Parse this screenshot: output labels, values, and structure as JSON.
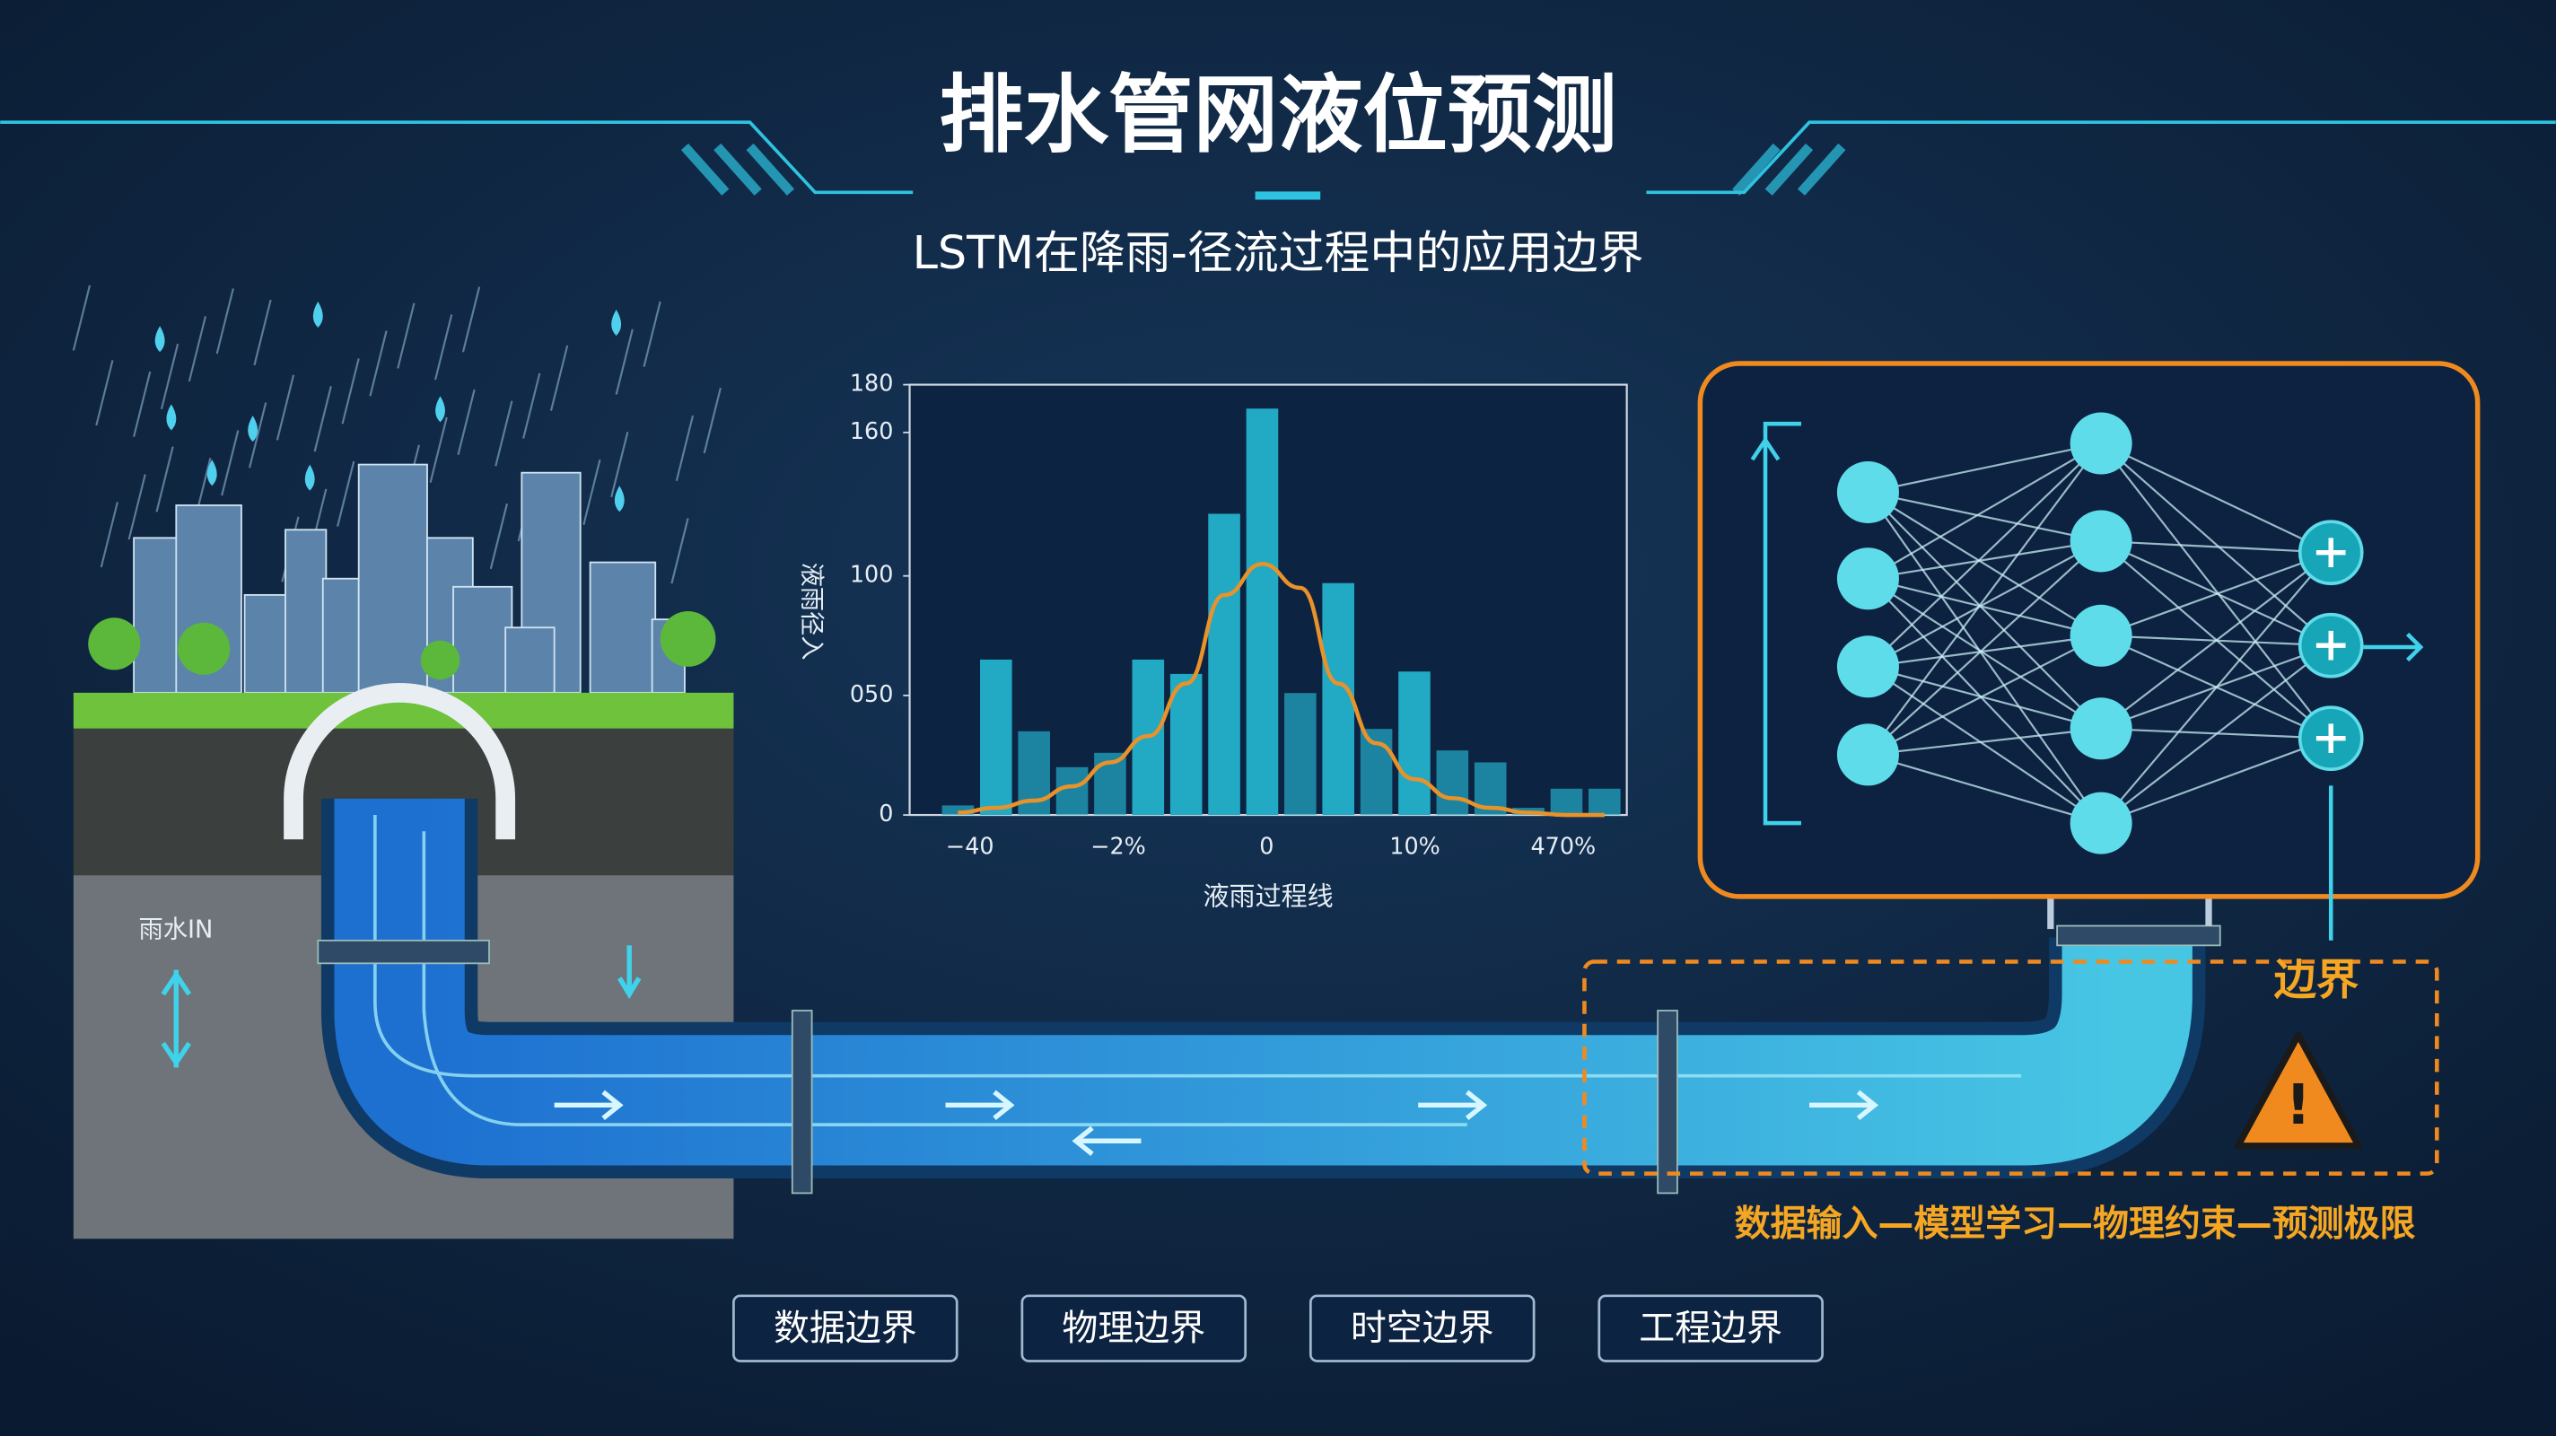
{
  "header": {
    "title": "排水管网液位预测",
    "subtitle": "LSTM在降雨-径流过程中的应用边界"
  },
  "chart_data": {
    "type": "bar",
    "y_label": "液雨径入",
    "x_label": "液雨过程线",
    "categories": [
      null,
      null,
      null,
      null,
      null,
      null,
      null,
      null,
      null,
      null,
      null,
      null,
      null,
      null,
      null,
      null,
      null,
      null
    ],
    "values": [
      4,
      65,
      35,
      20,
      26,
      65,
      59,
      126,
      170,
      51,
      97,
      36,
      60,
      27,
      22,
      3,
      11,
      11
    ],
    "color": "#22a9c4",
    "curve_values": [
      1,
      3,
      6,
      12,
      22,
      33,
      55,
      92,
      105,
      95,
      55,
      30,
      15,
      7,
      3,
      1,
      0,
      0
    ],
    "curve_color": "#e8922a",
    "ylim": [
      0,
      180
    ],
    "yticks": [
      0,
      {
        "value": 50,
        "label": "050"
      },
      100,
      160,
      180
    ],
    "x_tick_labels": [
      "−40",
      "−2%",
      "0",
      "10%",
      "470%"
    ]
  },
  "pipe": {
    "inlet_label": "雨水IN",
    "boundary_label": "边界",
    "flow_label": "数据输入—模型学习—物理约束—预测极限"
  },
  "tags": [
    "数据边界",
    "物理边界",
    "时空边界",
    "工程边界"
  ]
}
